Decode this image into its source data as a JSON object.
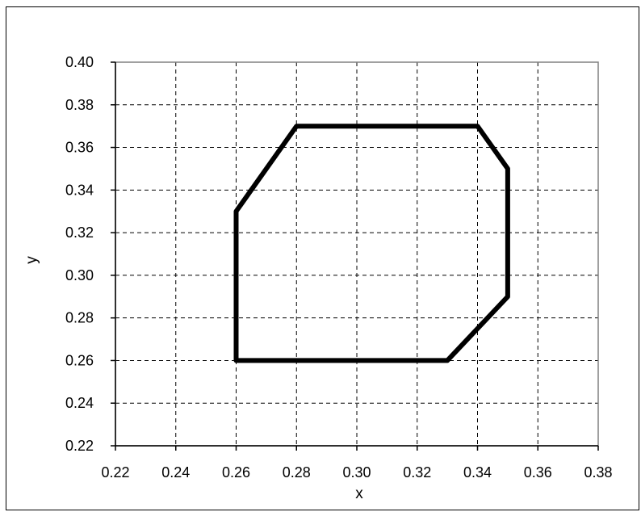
{
  "chart_data": {
    "type": "line",
    "title": "",
    "xlabel": "x",
    "ylabel": "y",
    "xlim": [
      0.22,
      0.38
    ],
    "ylim": [
      0.22,
      0.4
    ],
    "x_ticks": [
      "0.22",
      "0.24",
      "0.26",
      "0.28",
      "0.30",
      "0.32",
      "0.34",
      "0.36",
      "0.38"
    ],
    "y_ticks": [
      "0.22",
      "0.24",
      "0.26",
      "0.28",
      "0.30",
      "0.32",
      "0.34",
      "0.36",
      "0.38",
      "0.40"
    ],
    "grid": true,
    "legend": "none",
    "series": [
      {
        "color": "#000000",
        "closed": true,
        "points": [
          {
            "x": 0.26,
            "y": 0.26
          },
          {
            "x": 0.33,
            "y": 0.26
          },
          {
            "x": 0.35,
            "y": 0.29
          },
          {
            "x": 0.35,
            "y": 0.35
          },
          {
            "x": 0.34,
            "y": 0.37
          },
          {
            "x": 0.28,
            "y": 0.37
          },
          {
            "x": 0.26,
            "y": 0.33
          },
          {
            "x": 0.26,
            "y": 0.26
          }
        ]
      }
    ]
  }
}
